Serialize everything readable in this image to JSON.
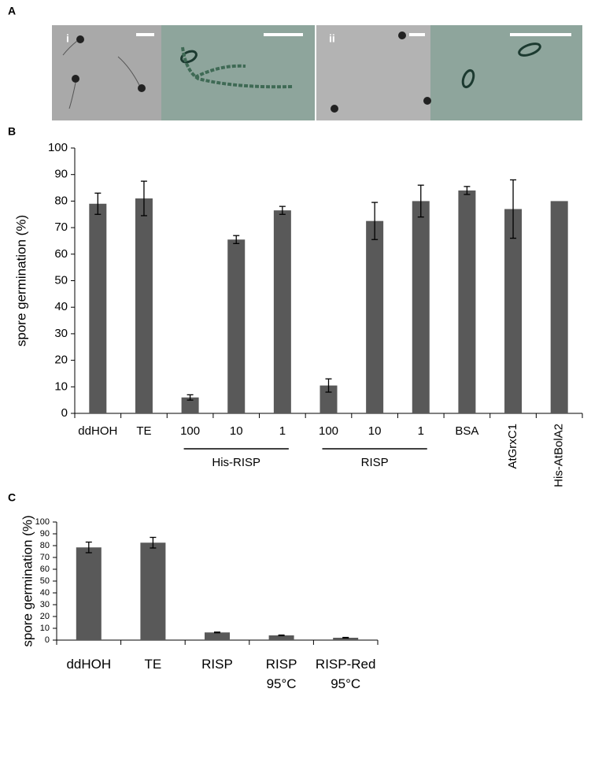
{
  "panel_a": {
    "label": "A",
    "image_labels": [
      "i",
      "ii"
    ]
  },
  "chart_data": [
    {
      "type": "bar",
      "panel_label": "B",
      "ylabel": "spore germination (%)",
      "categories": [
        "ddHOH",
        "TE",
        "100",
        "10",
        "1",
        "100",
        "10",
        "1",
        "BSA",
        "AtGrxC1",
        "His-AtBolA2"
      ],
      "category_groups": [
        null,
        null,
        "His-RISP",
        "His-RISP",
        "His-RISP",
        "RISP",
        "RISP",
        "RISP",
        null,
        null,
        null
      ],
      "x_label_rotation": [
        0,
        0,
        0,
        0,
        0,
        0,
        0,
        0,
        0,
        -90,
        -90
      ],
      "values": [
        79,
        81,
        6,
        65.5,
        76.5,
        10.5,
        72.5,
        80,
        84,
        77,
        80
      ],
      "errors": [
        4,
        6.5,
        1,
        1.5,
        1.5,
        2.5,
        7,
        6,
        1.5,
        11,
        null
      ],
      "color": "#595959",
      "ylim": [
        0,
        100
      ],
      "yticks": [
        0,
        10,
        20,
        30,
        40,
        50,
        60,
        70,
        80,
        90,
        100
      ]
    },
    {
      "type": "bar",
      "panel_label": "C",
      "ylabel": "spore germination (%)",
      "categories": [
        "ddHOH",
        "TE",
        "RISP",
        "RISP\n95°C",
        "RISP-Red\n95°C"
      ],
      "values": [
        78.5,
        82.5,
        6.5,
        4,
        2
      ],
      "errors": [
        4.5,
        4.5,
        0.3,
        0.3,
        0.3
      ],
      "color": "#595959",
      "ylim": [
        0,
        100
      ],
      "yticks": [
        0,
        10,
        20,
        30,
        40,
        50,
        60,
        70,
        80,
        90,
        100
      ]
    }
  ]
}
